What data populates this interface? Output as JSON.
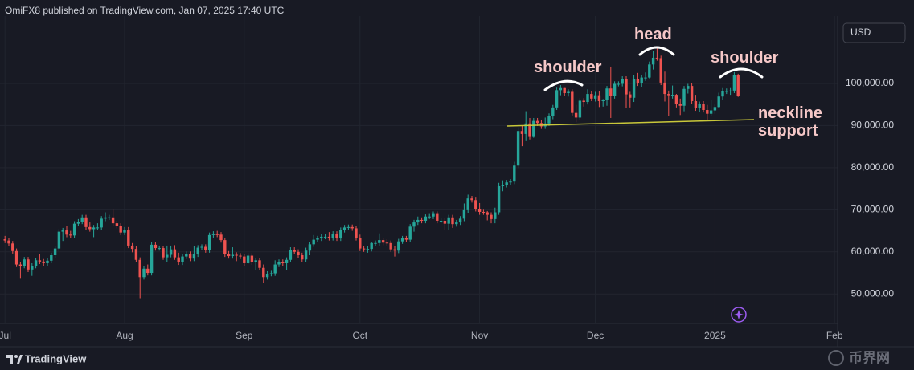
{
  "header": {
    "attribution": "OmiFX8 published on TradingView.com, Jan 07, 2025 17:40 UTC",
    "currency": "USD"
  },
  "chart_data": {
    "type": "candlestick",
    "open": [
      63000,
      62700,
      62000,
      60200,
      57000,
      56700,
      58200,
      55800,
      56700,
      58000,
      57700,
      57300,
      57900,
      59200,
      60800,
      64800,
      65100,
      64100,
      63900,
      66700,
      67200,
      68200,
      65900,
      65400,
      65800,
      65800,
      67900,
      68200,
      68200,
      66800,
      66200,
      64600,
      65300,
      61500,
      60700,
      58100,
      54000,
      56000,
      55000,
      61700,
      60900,
      60900,
      58700,
      59300,
      60600,
      58700,
      57500,
      58900,
      59500,
      58400,
      59400,
      61000,
      61200,
      60400,
      64000,
      64200,
      64100,
      62800,
      59400,
      59000,
      59300,
      59100,
      58900,
      57300,
      59100,
      57500,
      58000,
      56200,
      54000,
      54800,
      54900,
      57000,
      57600,
      57300,
      58100,
      60500,
      60000,
      59200,
      58200,
      60300,
      61800,
      62900,
      63200,
      63600,
      63600,
      63300,
      64300,
      63200,
      65200,
      65800,
      65900,
      65600,
      63300,
      60800,
      60600,
      60700,
      62100,
      62100,
      62800,
      62200,
      62100,
      60600,
      60300,
      62500,
      63200,
      62900,
      66000,
      67000,
      67600,
      67400,
      68400,
      68400,
      69000,
      67400,
      67400,
      66700,
      68200,
      66600,
      67000,
      67900,
      69900,
      72700,
      72300,
      70200,
      69500,
      69400,
      68800,
      67800,
      69400,
      75600,
      75900,
      76500,
      76700,
      80500,
      88700,
      88000,
      90500,
      87300,
      91100,
      90600,
      89800,
      90500,
      92300,
      94300,
      98400,
      98900,
      97700,
      98000,
      93000,
      91900,
      95900,
      95600,
      97500,
      96400,
      97200,
      95800,
      96000,
      98800,
      97000,
      99900,
      99900,
      101100,
      97400,
      96600,
      101100,
      100000,
      101400,
      101400,
      104500,
      106100,
      106000,
      100200,
      97500,
      97200,
      97300,
      95100,
      94700,
      98700,
      99400,
      95800,
      94200,
      95200,
      93700,
      92800,
      93600,
      94400,
      96900,
      98100,
      98200,
      98300,
      102000
    ],
    "high": [
      63800,
      63300,
      62600,
      60800,
      57600,
      58800,
      58800,
      57300,
      58600,
      59400,
      58300,
      58500,
      59800,
      61400,
      65400,
      65700,
      66100,
      65000,
      67300,
      67800,
      68800,
      68800,
      67000,
      66400,
      66800,
      68500,
      69400,
      68800,
      70000,
      67400,
      66800,
      65900,
      65900,
      62100,
      61300,
      58700,
      56600,
      57000,
      62300,
      62300,
      61500,
      61500,
      61500,
      61500,
      61600,
      59800,
      59500,
      60100,
      60100,
      61400,
      61600,
      61800,
      61800,
      64600,
      64900,
      65000,
      64700,
      63400,
      60200,
      61100,
      59900,
      59700,
      59500,
      59700,
      59700,
      58600,
      58600,
      57000,
      55400,
      55500,
      58000,
      58200,
      58200,
      58700,
      61100,
      61100,
      60600,
      59800,
      61000,
      62400,
      64000,
      63800,
      64200,
      64200,
      64700,
      64900,
      64900,
      65800,
      66400,
      66500,
      66500,
      66200,
      64100,
      61400,
      61300,
      62400,
      62700,
      64400,
      63400,
      63000,
      62700,
      61300,
      63100,
      63800,
      63800,
      66600,
      67600,
      68400,
      68200,
      68900,
      69000,
      69600,
      69600,
      68000,
      68000,
      68800,
      68800,
      67600,
      68500,
      71500,
      73600,
      73300,
      72900,
      71600,
      70000,
      69700,
      69400,
      70500,
      76400,
      77000,
      77100,
      77300,
      81400,
      89600,
      89900,
      93400,
      91800,
      91800,
      91800,
      91400,
      91900,
      92900,
      94900,
      99000,
      99600,
      98900,
      98600,
      98600,
      94900,
      96500,
      96500,
      98600,
      98100,
      98000,
      98200,
      96300,
      99400,
      104000,
      100500,
      100500,
      101700,
      101700,
      98000,
      101900,
      102500,
      102000,
      102600,
      105200,
      107800,
      108300,
      106600,
      102800,
      98300,
      99500,
      97500,
      96400,
      99400,
      99900,
      100000,
      97300,
      95700,
      95800,
      94900,
      96000,
      95000,
      97800,
      98900,
      98800,
      98900,
      102700,
      102300
    ],
    "low": [
      62100,
      61400,
      59600,
      56400,
      53800,
      56100,
      55200,
      54300,
      56100,
      57100,
      56700,
      56700,
      57300,
      58600,
      60200,
      62600,
      63500,
      63300,
      63300,
      66100,
      66600,
      65300,
      64800,
      63500,
      65200,
      65200,
      67300,
      67600,
      66200,
      65600,
      64000,
      64000,
      60900,
      59900,
      57500,
      49000,
      53400,
      54400,
      54400,
      60300,
      60300,
      58100,
      57600,
      58700,
      58100,
      56900,
      56900,
      58300,
      57800,
      57800,
      58800,
      60400,
      59800,
      59800,
      63400,
      63500,
      62200,
      58800,
      58400,
      58400,
      57800,
      58300,
      56700,
      57100,
      56900,
      55600,
      55600,
      52600,
      53400,
      54200,
      54300,
      56400,
      56700,
      55600,
      57500,
      59400,
      58600,
      57600,
      57600,
      59200,
      61200,
      62300,
      62600,
      63000,
      62700,
      62700,
      62600,
      62600,
      64600,
      65200,
      65000,
      62700,
      60200,
      60000,
      59800,
      60100,
      61500,
      61500,
      61600,
      61500,
      60000,
      58900,
      59700,
      61900,
      62300,
      62300,
      64800,
      66400,
      66800,
      66800,
      67800,
      67800,
      66800,
      66800,
      65300,
      65300,
      65700,
      66000,
      66400,
      67300,
      69300,
      71700,
      69600,
      68800,
      68800,
      67500,
      66800,
      66800,
      68800,
      74400,
      75300,
      75900,
      76100,
      79900,
      85100,
      86300,
      86700,
      87100,
      89900,
      89200,
      89200,
      89900,
      91500,
      93700,
      97200,
      97100,
      96900,
      92400,
      90800,
      91300,
      94500,
      95000,
      95800,
      95700,
      94400,
      94500,
      94700,
      91800,
      96400,
      99300,
      99300,
      94200,
      94300,
      95600,
      99400,
      99200,
      100600,
      101200,
      103300,
      105400,
      99600,
      95700,
      92200,
      96400,
      94300,
      92500,
      93400,
      97600,
      95200,
      93500,
      93300,
      93100,
      91300,
      92200,
      92800,
      94200,
      96000,
      97500,
      97300,
      97700,
      96800
    ],
    "close": [
      62700,
      62000,
      60200,
      57000,
      56700,
      58200,
      55800,
      56700,
      58000,
      57700,
      57300,
      57900,
      59200,
      60800,
      64800,
      65100,
      64100,
      63900,
      66700,
      67200,
      68200,
      65900,
      65400,
      65800,
      65800,
      67900,
      68200,
      68200,
      66800,
      66200,
      64600,
      65300,
      61500,
      60700,
      58100,
      54000,
      56000,
      55000,
      61700,
      60900,
      60900,
      58700,
      59300,
      60600,
      58700,
      57500,
      58900,
      59500,
      58400,
      59400,
      61000,
      61200,
      60400,
      64000,
      64200,
      64100,
      62800,
      59400,
      59000,
      59300,
      59100,
      58900,
      57300,
      59100,
      57500,
      58000,
      56200,
      54000,
      54800,
      54900,
      57000,
      57600,
      57300,
      58100,
      60500,
      60000,
      59200,
      58200,
      60300,
      61800,
      62900,
      63200,
      63600,
      63600,
      63300,
      64300,
      63200,
      65200,
      65800,
      65900,
      65600,
      63300,
      60800,
      60600,
      60700,
      62100,
      62100,
      62800,
      62200,
      62100,
      60600,
      60300,
      62500,
      63200,
      62900,
      66000,
      67000,
      67600,
      67400,
      68400,
      68400,
      69000,
      67400,
      67400,
      66700,
      68200,
      66600,
      67000,
      67900,
      69900,
      72700,
      72300,
      70200,
      69500,
      69400,
      68800,
      67800,
      69400,
      75600,
      75900,
      76500,
      76700,
      80500,
      88700,
      88000,
      90500,
      87300,
      91100,
      90600,
      89800,
      90500,
      92300,
      94300,
      98400,
      98900,
      97700,
      98000,
      93000,
      91900,
      95900,
      95600,
      97500,
      96400,
      97200,
      95800,
      96000,
      98800,
      97000,
      99900,
      99900,
      101100,
      97400,
      96600,
      101100,
      100000,
      101400,
      101400,
      104500,
      106100,
      106000,
      100200,
      97500,
      97200,
      97300,
      95100,
      94700,
      98700,
      99400,
      95800,
      94200,
      95200,
      93700,
      92800,
      93600,
      94400,
      96900,
      98100,
      98200,
      98300,
      102000,
      97000
    ],
    "up_color": "#26a69a",
    "down_color": "#ef5350",
    "ylim": [
      43000,
      116000
    ],
    "yticks": [
      {
        "value": 50000,
        "label": "50,000.00"
      },
      {
        "value": 60000,
        "label": "60,000.00"
      },
      {
        "value": 70000,
        "label": "70,000.00"
      },
      {
        "value": 80000,
        "label": "80,000.00"
      },
      {
        "value": 90000,
        "label": "90,000.00"
      },
      {
        "value": 100000,
        "label": "100,000.00"
      }
    ],
    "xticks": [
      {
        "value": 0,
        "label": "Jul"
      },
      {
        "value": 31,
        "label": "Aug"
      },
      {
        "value": 62,
        "label": "Sep"
      },
      {
        "value": 92,
        "label": "Oct"
      },
      {
        "value": 123,
        "label": "Nov"
      },
      {
        "value": 153,
        "label": "Dec"
      },
      {
        "value": 184,
        "label": "2025"
      },
      {
        "value": 215,
        "label": "Feb"
      }
    ],
    "grid": true,
    "annotations": [
      "shoulder",
      "head",
      "shoulder",
      "neckline support"
    ]
  },
  "footer": {
    "brand": "TradingView",
    "watermark": "币界网"
  }
}
